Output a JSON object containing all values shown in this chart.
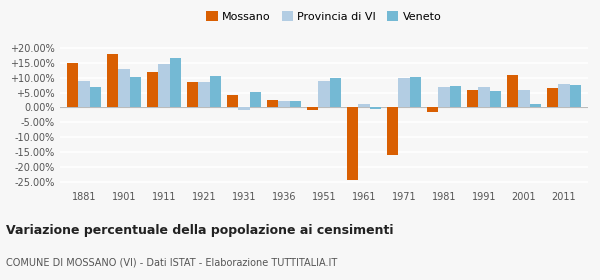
{
  "years": [
    1881,
    1901,
    1911,
    1921,
    1931,
    1936,
    1951,
    1961,
    1971,
    1981,
    1991,
    2001,
    2011
  ],
  "mossano": [
    14.8,
    18.0,
    11.8,
    8.5,
    4.0,
    2.5,
    -1.0,
    -24.5,
    -16.0,
    -1.5,
    6.0,
    10.8,
    6.5
  ],
  "provincia_vi": [
    9.0,
    12.8,
    14.5,
    8.5,
    -1.0,
    2.2,
    8.8,
    1.2,
    9.8,
    7.0,
    6.8,
    6.0,
    8.0
  ],
  "veneto": [
    6.8,
    10.2,
    16.5,
    10.5,
    5.2,
    2.2,
    10.0,
    -0.5,
    10.2,
    7.2,
    5.5,
    1.0,
    7.5
  ],
  "mossano_color": "#d95f02",
  "provincia_color": "#b3cde3",
  "veneto_color": "#74b9d4",
  "bg_color": "#f7f7f7",
  "grid_color": "#ffffff",
  "title": "Variazione percentuale della popolazione ai censimenti",
  "subtitle": "COMUNE DI MOSSANO (VI) - Dati ISTAT - Elaborazione TUTTITALIA.IT",
  "legend_labels": [
    "Mossano",
    "Provincia di VI",
    "Veneto"
  ],
  "ylim": [
    -27,
    22
  ],
  "yticks": [
    -25,
    -20,
    -15,
    -10,
    -5,
    0,
    5,
    10,
    15,
    20
  ],
  "bar_width": 0.28
}
